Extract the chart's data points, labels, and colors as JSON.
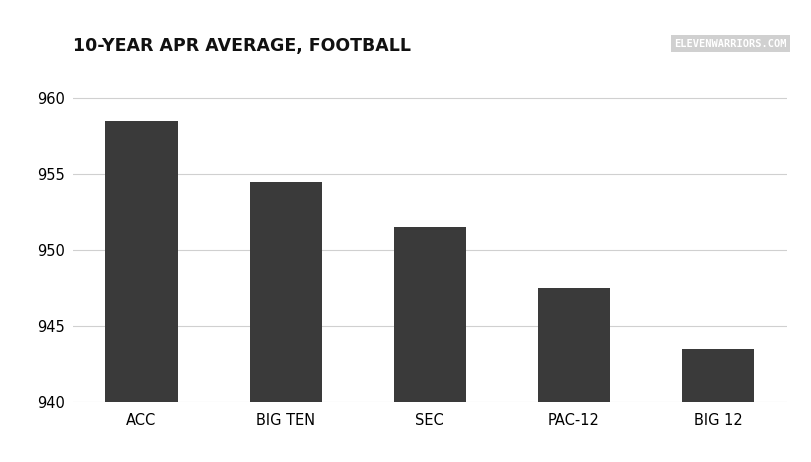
{
  "categories": [
    "ACC",
    "BIG TEN",
    "SEC",
    "PAC-12",
    "BIG 12"
  ],
  "values": [
    958.5,
    954.5,
    951.5,
    947.5,
    943.5
  ],
  "bar_color": "#3a3a3a",
  "title": "10-YEAR APR AVERAGE, FOOTBALL",
  "title_fontsize": 12.5,
  "title_fontweight": "bold",
  "watermark": "ELEVENWARRIORS.COM",
  "ylim": [
    940,
    961
  ],
  "yticks": [
    940,
    945,
    950,
    955,
    960
  ],
  "background_color": "#ffffff",
  "grid_color": "#d0d0d0",
  "tick_label_fontsize": 10.5,
  "bar_width": 0.5
}
